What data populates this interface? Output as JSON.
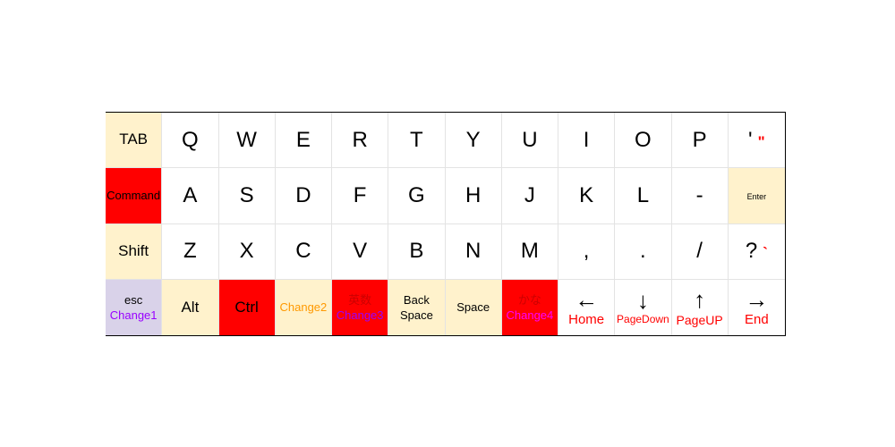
{
  "keyboard": {
    "rows": [
      [
        {
          "main": "TAB",
          "size": "med",
          "bg": "#fff2cc"
        },
        {
          "main": "Q",
          "size": "big"
        },
        {
          "main": "W",
          "size": "big"
        },
        {
          "main": "E",
          "size": "big"
        },
        {
          "main": "R",
          "size": "big"
        },
        {
          "main": "T",
          "size": "big"
        },
        {
          "main": "Y",
          "size": "big"
        },
        {
          "main": "U",
          "size": "big"
        },
        {
          "main": "I",
          "size": "big"
        },
        {
          "main": "O",
          "size": "big"
        },
        {
          "main": "P",
          "size": "big"
        },
        {
          "main": "'",
          "size": "big",
          "extra": "\"",
          "extra_color": "#ff0000"
        }
      ],
      [
        {
          "main": "Command",
          "size": "sm",
          "bg": "#ff0000"
        },
        {
          "main": "A",
          "size": "big"
        },
        {
          "main": "S",
          "size": "big"
        },
        {
          "main": "D",
          "size": "big"
        },
        {
          "main": "F",
          "size": "big"
        },
        {
          "main": "G",
          "size": "big"
        },
        {
          "main": "H",
          "size": "big"
        },
        {
          "main": "J",
          "size": "big"
        },
        {
          "main": "K",
          "size": "big"
        },
        {
          "main": "L",
          "size": "big"
        },
        {
          "main": "-",
          "size": "big"
        },
        {
          "main": "Enter",
          "size": "xs",
          "bg": "#fff2cc"
        }
      ],
      [
        {
          "main": "Shift",
          "size": "med",
          "bg": "#fff2cc"
        },
        {
          "main": "Z",
          "size": "big"
        },
        {
          "main": "X",
          "size": "big"
        },
        {
          "main": "C",
          "size": "big"
        },
        {
          "main": "V",
          "size": "big"
        },
        {
          "main": "B",
          "size": "big"
        },
        {
          "main": "N",
          "size": "big"
        },
        {
          "main": "M",
          "size": "big"
        },
        {
          "main": ",",
          "size": "big"
        },
        {
          "main": ".",
          "size": "big"
        },
        {
          "main": "/",
          "size": "big"
        },
        {
          "main": "?",
          "size": "big",
          "extra": "`",
          "extra_color": "#ff0000"
        }
      ],
      [
        {
          "main": "esc",
          "size": "sm",
          "sub": "Change1",
          "sub_color": "#9900ff",
          "bg": "#d9d2e9"
        },
        {
          "main": "Alt",
          "size": "med",
          "bg": "#fff2cc"
        },
        {
          "main": "Ctrl",
          "size": "med",
          "bg": "#ff0000"
        },
        {
          "main": "Change2",
          "size": "sm",
          "color": "#ff9900",
          "bg": "#fff2cc"
        },
        {
          "main": "英数",
          "size": "sm",
          "color": "#cc0000",
          "sub": "Change3",
          "sub_color": "#9900ff",
          "bg": "#ff0000"
        },
        {
          "main": "Back",
          "size": "sm",
          "sub": "Space",
          "sub_color": "#000000",
          "bg": "#fff2cc"
        },
        {
          "main": "Space",
          "size": "sm",
          "bg": "#fff2cc"
        },
        {
          "main": "かな",
          "size": "sm",
          "color": "#cc0000",
          "sub": "Change4",
          "sub_color": "#ff00ff",
          "bg": "#ff0000"
        },
        {
          "main": "←",
          "size": "arrow",
          "sub": "Home",
          "sub_color": "#ff0000",
          "sub_size": "15px"
        },
        {
          "main": "↓",
          "size": "arrow",
          "sub": "PageDown",
          "sub_color": "#ff0000",
          "sub_size": "12px"
        },
        {
          "main": "↑",
          "size": "arrow",
          "sub": "PageUP",
          "sub_color": "#ff0000",
          "sub_size": "14px"
        },
        {
          "main": "→",
          "size": "arrow",
          "sub": "End",
          "sub_color": "#ff0000",
          "sub_size": "15px"
        }
      ]
    ]
  }
}
